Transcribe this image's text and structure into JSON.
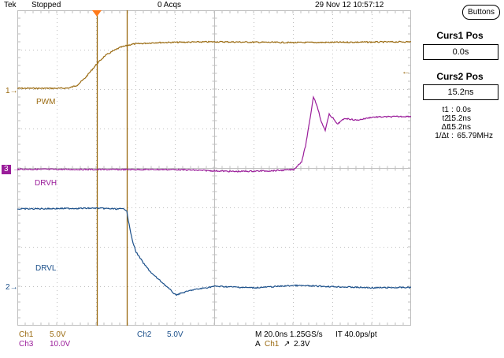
{
  "colors": {
    "ch1": "#9a6a10",
    "ch2": "#1a4f8a",
    "ch3": "#9a1d9a",
    "grid": "#bfbfbf",
    "cursor": "#9a6a10",
    "trigger_marker": "#ff7a1a"
  },
  "header": {
    "brand": "Tek",
    "status": "Stopped",
    "acqs": "0 Acqs",
    "datetime": "29 Nov 12 10:57:12",
    "buttons_label": "Buttons"
  },
  "traces": {
    "ch1_label": "PWM",
    "ch3_label": "DRVH",
    "ch2_label": "DRVL",
    "ch1_marker": "1",
    "ch3_marker": "3",
    "ch2_marker": "2"
  },
  "side_panel": {
    "curs1_title": "Curs1 Pos",
    "curs1_value": "0.0s",
    "curs2_title": "Curs2 Pos",
    "curs2_value": "15.2ns",
    "readout": [
      {
        "key": "t1",
        "value": "0.0s"
      },
      {
        "key": "t2",
        "value": "15.2ns"
      },
      {
        "key": "Δt",
        "value": "15.2ns"
      },
      {
        "key": "1/Δt",
        "value": "65.79MHz"
      }
    ]
  },
  "bottom": {
    "ch1_name": "Ch1",
    "ch1_scale": "5.0V",
    "ch3_name": "Ch3",
    "ch3_scale": "10.0V",
    "ch2_name": "Ch2",
    "ch2_scale": "5.0V",
    "timebase": "M 20.0ns 1.25GS/s",
    "interp": "IT 40.0ps/pt",
    "trigger_mode": "A",
    "trigger_source": "Ch1",
    "trigger_slope": "↗",
    "trigger_level": "2.3V"
  },
  "chart_data": {
    "type": "line",
    "title": "",
    "xlabel": "",
    "ylabel": "",
    "x_unit": "ns",
    "x_per_div": 20,
    "divisions_x": 10,
    "divisions_y": 8,
    "cursors_ns": [
      0,
      15.2
    ],
    "series": [
      {
        "name": "PWM",
        "unit": "V",
        "scale_v_per_div": 5.0,
        "t_ns": [
          -90,
          -40,
          -18,
          -14,
          -10,
          -6,
          -2,
          0,
          4,
          8,
          12,
          18,
          30,
          60,
          100,
          160,
          200,
          260,
          310,
          360,
          410
        ],
        "v": [
          0.3,
          0.3,
          0.3,
          0.35,
          0.7,
          1.6,
          2.8,
          3.4,
          4.4,
          5.0,
          5.5,
          5.9,
          6.1,
          6.2,
          6.1,
          6.2,
          6.1,
          6.2,
          6.1,
          6.2,
          6.2
        ]
      },
      {
        "name": "DRVH",
        "unit": "V",
        "scale_v_per_div": 10.0,
        "t_ns": [
          -90,
          -40,
          0,
          40,
          70,
          90,
          100,
          104,
          106,
          108,
          110,
          112,
          114,
          116,
          118,
          120,
          122,
          126,
          132,
          140,
          160,
          200,
          260,
          320,
          410
        ],
        "v": [
          0.0,
          0.1,
          0.0,
          0.0,
          -0.5,
          -0.3,
          0.0,
          2.0,
          6.0,
          12.0,
          18.5,
          16.0,
          12.0,
          10.0,
          14.0,
          13.0,
          11.5,
          13.0,
          12.5,
          13.3,
          13.5,
          13.3,
          13.5,
          13.4,
          13.6
        ]
      },
      {
        "name": "DRVL",
        "unit": "V",
        "scale_v_per_div": 5.0,
        "t_ns": [
          -90,
          -40,
          0,
          10,
          14,
          15.2,
          16,
          18,
          20,
          24,
          28,
          34,
          40,
          48,
          60,
          80,
          100,
          140,
          180,
          240,
          300,
          360,
          410
        ],
        "v": [
          10.0,
          10.0,
          10.1,
          10.0,
          10.0,
          9.8,
          8.5,
          6.0,
          4.5,
          3.0,
          1.8,
          0.5,
          -0.9,
          -0.3,
          0.2,
          0.0,
          0.3,
          0.0,
          0.1,
          0.0,
          0.1,
          0.0,
          0.0
        ]
      }
    ]
  }
}
